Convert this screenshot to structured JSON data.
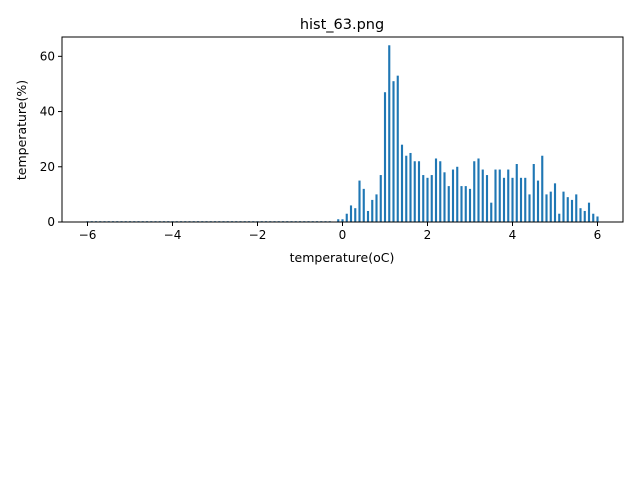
{
  "chart_data": {
    "type": "bar",
    "title": "hist_63.png",
    "xlabel": "temperature(oC)",
    "ylabel": "temperature(%)",
    "xlim": [
      -6.6,
      6.6
    ],
    "ylim": [
      0,
      67
    ],
    "xticks": [
      -6,
      -4,
      -2,
      0,
      2,
      4,
      6
    ],
    "xtick_labels": [
      "−6",
      "−4",
      "−2",
      "0",
      "2",
      "4",
      "6"
    ],
    "yticks": [
      0,
      20,
      40,
      60
    ],
    "ytick_labels": [
      "0",
      "20",
      "40",
      "60"
    ],
    "grid": false,
    "legend": "none",
    "bar_width": 0.05,
    "x": [
      -6.0,
      -5.9,
      -5.8,
      -5.7,
      -5.6,
      -5.5,
      -5.4,
      -5.3,
      -5.2,
      -5.1,
      -5.0,
      -4.9,
      -4.8,
      -4.7,
      -4.6,
      -4.5,
      -4.4,
      -4.3,
      -4.2,
      -4.1,
      -4.0,
      -3.9,
      -3.8,
      -3.7,
      -3.6,
      -3.5,
      -3.4,
      -3.3,
      -3.2,
      -3.1,
      -3.0,
      -2.9,
      -2.8,
      -2.7,
      -2.6,
      -2.5,
      -2.4,
      -2.3,
      -2.2,
      -2.1,
      -2.0,
      -1.9,
      -1.8,
      -1.7,
      -1.6,
      -1.5,
      -1.4,
      -1.3,
      -1.2,
      -1.1,
      -1.0,
      -0.9,
      -0.8,
      -0.7,
      -0.6,
      -0.5,
      -0.4,
      -0.3,
      -0.1,
      0.0,
      0.1,
      0.2,
      0.3,
      0.4,
      0.5,
      0.6,
      0.7,
      0.8,
      0.9,
      1.0,
      1.1,
      1.2,
      1.3,
      1.4,
      1.5,
      1.6,
      1.7,
      1.8,
      1.9,
      2.0,
      2.1,
      2.2,
      2.3,
      2.4,
      2.5,
      2.6,
      2.7,
      2.8,
      2.9,
      3.0,
      3.1,
      3.2,
      3.3,
      3.4,
      3.5,
      3.6,
      3.7,
      3.8,
      3.9,
      4.0,
      4.1,
      4.2,
      4.3,
      4.4,
      4.5,
      4.6,
      4.7,
      4.8,
      4.9,
      5.0,
      5.1,
      5.2,
      5.3,
      5.4,
      5.5,
      5.6,
      5.7,
      5.8,
      5.9,
      6.0
    ],
    "values": [
      0,
      0,
      0,
      0,
      0,
      0,
      0,
      0,
      0,
      0,
      0,
      0,
      0,
      0,
      0,
      0,
      0,
      0,
      0,
      0,
      0,
      0,
      0,
      0,
      0,
      0,
      0,
      0,
      0,
      0,
      0,
      0,
      0,
      0,
      0,
      0,
      0,
      0,
      0,
      0,
      0,
      0,
      0,
      0,
      0,
      0,
      0,
      0,
      0,
      0,
      0,
      0,
      0,
      0,
      0,
      0,
      0,
      0,
      1,
      1,
      3,
      6,
      5,
      15,
      12,
      4,
      8,
      10,
      17,
      47,
      64,
      51,
      53,
      28,
      24,
      25,
      22,
      22,
      17,
      16,
      17,
      23,
      22,
      18,
      13,
      19,
      20,
      13,
      13,
      12,
      22,
      23,
      19,
      17,
      7,
      19,
      19,
      16,
      19,
      16,
      21,
      16,
      16,
      10,
      21,
      15,
      24,
      10,
      11,
      14,
      3,
      11,
      9,
      8,
      10,
      5,
      4,
      7,
      3,
      2
    ],
    "colors": {
      "bar": "#1f77b4",
      "axes": "#000000",
      "background": "#ffffff"
    }
  }
}
